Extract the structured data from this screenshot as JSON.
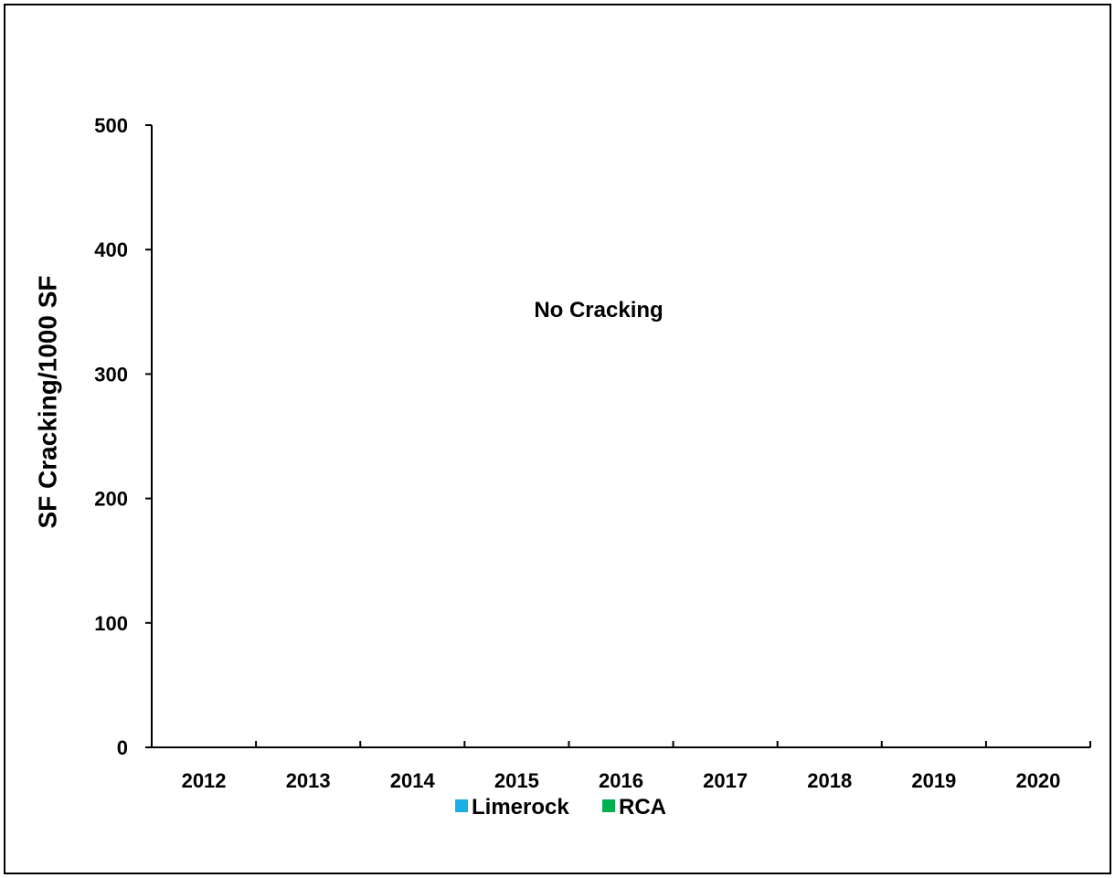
{
  "chart_data": {
    "type": "bar",
    "title": "",
    "xlabel": "",
    "ylabel": "SF Cracking/1000 SF",
    "categories": [
      "2012",
      "2013",
      "2014",
      "2015",
      "2016",
      "2017",
      "2018",
      "2019",
      "2020"
    ],
    "series": [
      {
        "name": "Limerock",
        "color": "#1aaee5",
        "values": [
          0,
          0,
          0,
          0,
          0,
          0,
          0,
          0,
          0
        ]
      },
      {
        "name": "RCA",
        "color": "#00b050",
        "values": [
          0,
          0,
          0,
          0,
          0,
          0,
          0,
          0,
          0
        ]
      }
    ],
    "ylim": [
      0,
      500
    ],
    "yticks": [
      "0",
      "100",
      "200",
      "300",
      "400",
      "500"
    ],
    "annotations": [
      "No Cracking"
    ],
    "grid": false,
    "legend": "bottom"
  }
}
